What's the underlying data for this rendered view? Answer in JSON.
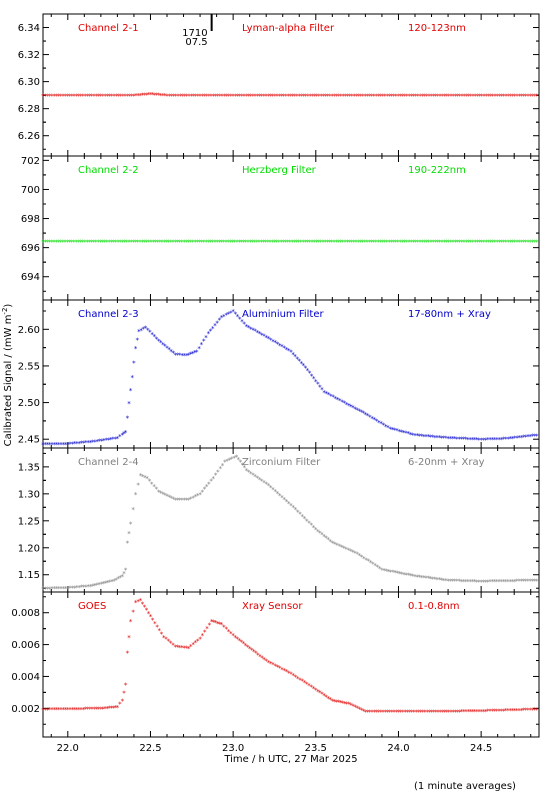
{
  "chart_data": [
    {
      "type": "scatter",
      "labels": {
        "channel": "Channel 2-1",
        "filter": "Lyman-alpha Filter",
        "band": "120-123nm"
      },
      "color": "#e00000",
      "ylim": [
        6.245,
        6.35
      ],
      "yticks": [
        6.26,
        6.28,
        6.3,
        6.32,
        6.34
      ],
      "ytick_labels": [
        "6.26",
        "6.28",
        "6.30",
        "6.32",
        "6.34"
      ],
      "series": [
        {
          "values": [
            [
              21.85,
              6.29
            ],
            [
              22.4,
              6.29
            ],
            [
              22.5,
              6.291
            ],
            [
              22.6,
              6.29
            ],
            [
              24.85,
              6.29
            ]
          ]
        }
      ],
      "annotation": {
        "x": 22.87,
        "label_top": "1710",
        "label_bottom": "07.5"
      }
    },
    {
      "type": "scatter",
      "labels": {
        "channel": "Channel 2-2",
        "filter": "Herzberg Filter",
        "band": "190-222nm"
      },
      "color": "#00dd00",
      "ylim": [
        692.4,
        702.3
      ],
      "yticks": [
        694,
        696,
        698,
        700,
        702
      ],
      "ytick_labels": [
        "694",
        "696",
        "698",
        "700",
        "702"
      ],
      "series": [
        {
          "values": [
            [
              21.85,
              696.45
            ],
            [
              24.85,
              696.45
            ]
          ]
        }
      ]
    },
    {
      "type": "scatter",
      "labels": {
        "channel": "Channel 2-3",
        "filter": "Aluminium Filter",
        "band": "17-80nm + Xray"
      },
      "color": "#0000cc",
      "ylim": [
        2.438,
        2.64
      ],
      "yticks": [
        2.45,
        2.5,
        2.55,
        2.6
      ],
      "ytick_labels": [
        "2.45",
        "2.50",
        "2.55",
        "2.60"
      ],
      "series": [
        {
          "values": [
            [
              21.85,
              2.444
            ],
            [
              22.0,
              2.444
            ],
            [
              22.15,
              2.447
            ],
            [
              22.3,
              2.452
            ],
            [
              22.33,
              2.457
            ],
            [
              22.35,
              2.46
            ],
            [
              22.37,
              2.5
            ],
            [
              22.39,
              2.535
            ],
            [
              22.41,
              2.575
            ],
            [
              22.43,
              2.598
            ],
            [
              22.47,
              2.603
            ],
            [
              22.55,
              2.585
            ],
            [
              22.65,
              2.566
            ],
            [
              22.72,
              2.565
            ],
            [
              22.78,
              2.57
            ],
            [
              22.85,
              2.595
            ],
            [
              22.93,
              2.617
            ],
            [
              23.0,
              2.625
            ],
            [
              23.08,
              2.605
            ],
            [
              23.2,
              2.59
            ],
            [
              23.35,
              2.57
            ],
            [
              23.45,
              2.545
            ],
            [
              23.55,
              2.515
            ],
            [
              23.7,
              2.497
            ],
            [
              23.8,
              2.485
            ],
            [
              23.95,
              2.465
            ],
            [
              24.1,
              2.456
            ],
            [
              24.3,
              2.452
            ],
            [
              24.5,
              2.45
            ],
            [
              24.65,
              2.451
            ],
            [
              24.85,
              2.456
            ]
          ]
        }
      ]
    },
    {
      "type": "scatter",
      "labels": {
        "channel": "Channel 2-4",
        "filter": "Zirconium Filter",
        "band": "6-20nm + Xray"
      },
      "color": "#808080",
      "ylim": [
        1.118,
        1.385
      ],
      "yticks": [
        1.15,
        1.2,
        1.25,
        1.3,
        1.35
      ],
      "ytick_labels": [
        "1.15",
        "1.20",
        "1.25",
        "1.30",
        "1.35"
      ],
      "series": [
        {
          "values": [
            [
              21.85,
              1.125
            ],
            [
              22.0,
              1.126
            ],
            [
              22.15,
              1.13
            ],
            [
              22.28,
              1.14
            ],
            [
              22.33,
              1.148
            ],
            [
              22.35,
              1.16
            ],
            [
              22.36,
              1.21
            ],
            [
              22.38,
              1.245
            ],
            [
              22.41,
              1.3
            ],
            [
              22.44,
              1.335
            ],
            [
              22.48,
              1.33
            ],
            [
              22.55,
              1.305
            ],
            [
              22.65,
              1.29
            ],
            [
              22.73,
              1.29
            ],
            [
              22.8,
              1.3
            ],
            [
              22.88,
              1.33
            ],
            [
              22.95,
              1.36
            ],
            [
              23.02,
              1.37
            ],
            [
              23.08,
              1.345
            ],
            [
              23.2,
              1.32
            ],
            [
              23.35,
              1.28
            ],
            [
              23.5,
              1.235
            ],
            [
              23.6,
              1.21
            ],
            [
              23.75,
              1.19
            ],
            [
              23.9,
              1.16
            ],
            [
              24.1,
              1.148
            ],
            [
              24.3,
              1.14
            ],
            [
              24.5,
              1.138
            ],
            [
              24.85,
              1.14
            ]
          ]
        }
      ]
    },
    {
      "type": "scatter",
      "labels": {
        "channel": "GOES",
        "filter": "Xray Sensor",
        "band": "0.1-0.8nm"
      },
      "color": "#e00000",
      "ylim": [
        0.0002,
        0.0093
      ],
      "yticks": [
        0.002,
        0.004,
        0.006,
        0.008
      ],
      "ytick_labels": [
        "0.002",
        "0.004",
        "0.006",
        "0.008"
      ],
      "series": [
        {
          "values": [
            [
              21.85,
              0.00195
            ],
            [
              22.0,
              0.00197
            ],
            [
              22.2,
              0.002
            ],
            [
              22.3,
              0.0021
            ],
            [
              22.33,
              0.0025
            ],
            [
              22.35,
              0.0035
            ],
            [
              22.36,
              0.0055
            ],
            [
              22.38,
              0.0075
            ],
            [
              22.41,
              0.0087
            ],
            [
              22.44,
              0.0088
            ],
            [
              22.5,
              0.0078
            ],
            [
              22.58,
              0.0065
            ],
            [
              22.65,
              0.0059
            ],
            [
              22.73,
              0.0058
            ],
            [
              22.8,
              0.0064
            ],
            [
              22.87,
              0.0075
            ],
            [
              22.93,
              0.0073
            ],
            [
              23.0,
              0.0066
            ],
            [
              23.1,
              0.0058
            ],
            [
              23.2,
              0.005
            ],
            [
              23.35,
              0.0042
            ],
            [
              23.5,
              0.0032
            ],
            [
              23.6,
              0.0025
            ],
            [
              23.7,
              0.0023
            ],
            [
              23.8,
              0.0018
            ],
            [
              24.0,
              0.0018
            ],
            [
              24.2,
              0.0018
            ],
            [
              24.5,
              0.00185
            ],
            [
              24.85,
              0.00195
            ]
          ]
        }
      ]
    }
  ],
  "xaxis": {
    "xlim": [
      21.85,
      24.85
    ],
    "ticks": [
      22.0,
      22.5,
      23.0,
      23.5,
      24.0,
      24.5
    ],
    "tick_labels": [
      "22.0",
      "22.5",
      "23.0",
      "23.5",
      "24.0",
      "24.5"
    ],
    "minor_step": 0.1,
    "label": "Time / h UTC, 27 Mar 2025"
  },
  "ylabel": {
    "text": "Calibrated Signal / (mW m",
    "sup": "-2",
    "close": ")"
  },
  "footnote": "(1 minute averages)"
}
